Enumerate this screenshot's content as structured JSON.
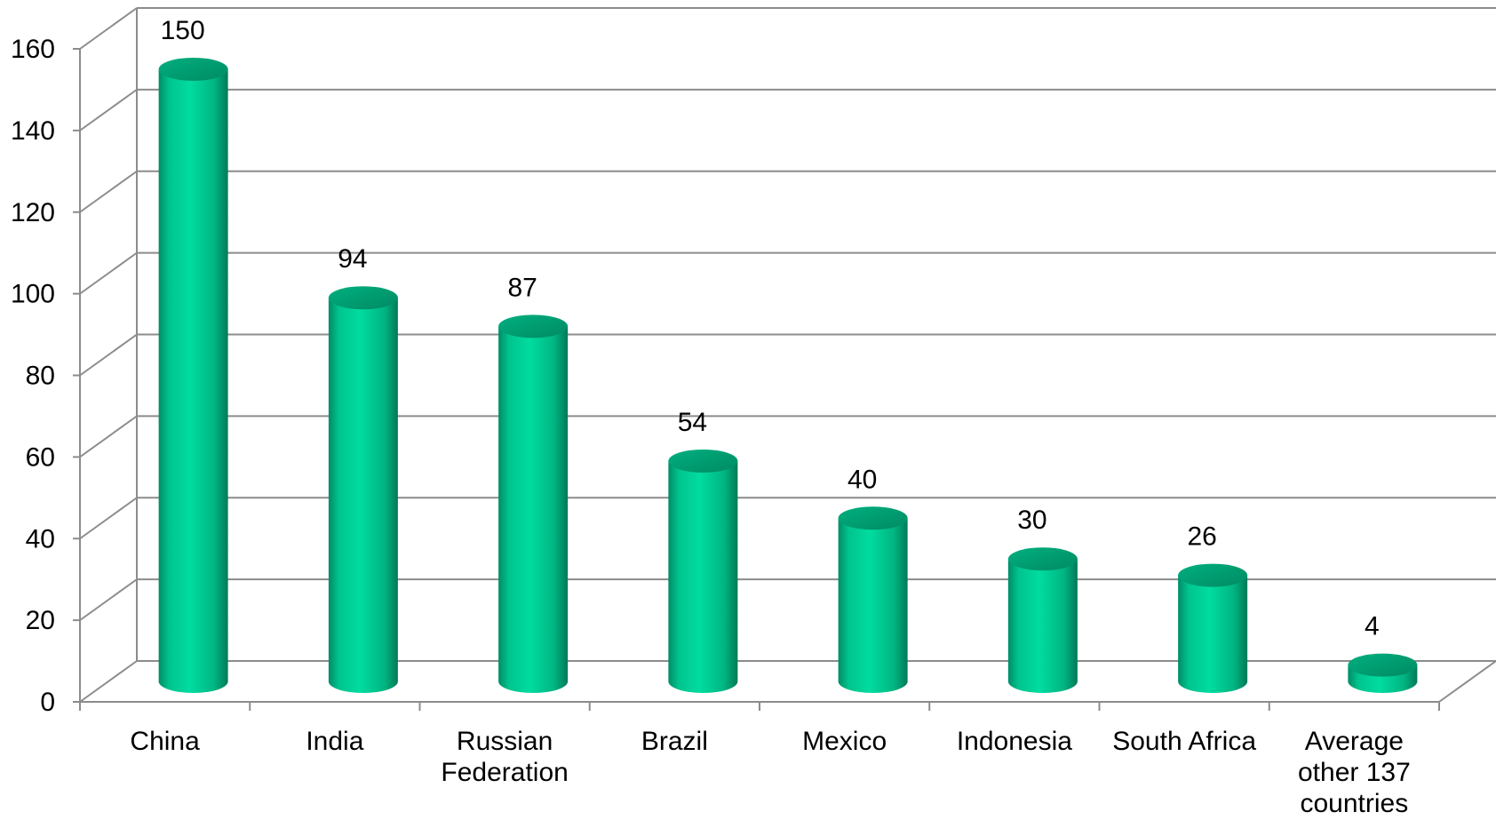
{
  "chart_data": {
    "type": "bar",
    "style": "3d-cylinder",
    "categories": [
      [
        "China"
      ],
      [
        "India"
      ],
      [
        "Russian",
        "Federation"
      ],
      [
        "Brazil"
      ],
      [
        "Mexico"
      ],
      [
        "Indonesia"
      ],
      [
        "South Africa"
      ],
      [
        "Average",
        "other 137",
        "countries"
      ]
    ],
    "values": [
      150,
      94,
      87,
      54,
      40,
      30,
      26,
      4
    ],
    "data_labels": [
      "150",
      "94",
      "87",
      "54",
      "40",
      "30",
      "26",
      "4"
    ],
    "title": "",
    "xlabel": "",
    "ylabel": "",
    "ylim": [
      0,
      160
    ],
    "yticks": [
      "0",
      "20",
      "40",
      "60",
      "80",
      "100",
      "120",
      "140",
      "160"
    ],
    "grid": true,
    "legend": "none",
    "colors": {
      "bar_main": "#00D49A",
      "bar_dark": "#008C66",
      "bar_top": "#00A679",
      "grid": "#8C8C8C"
    }
  }
}
